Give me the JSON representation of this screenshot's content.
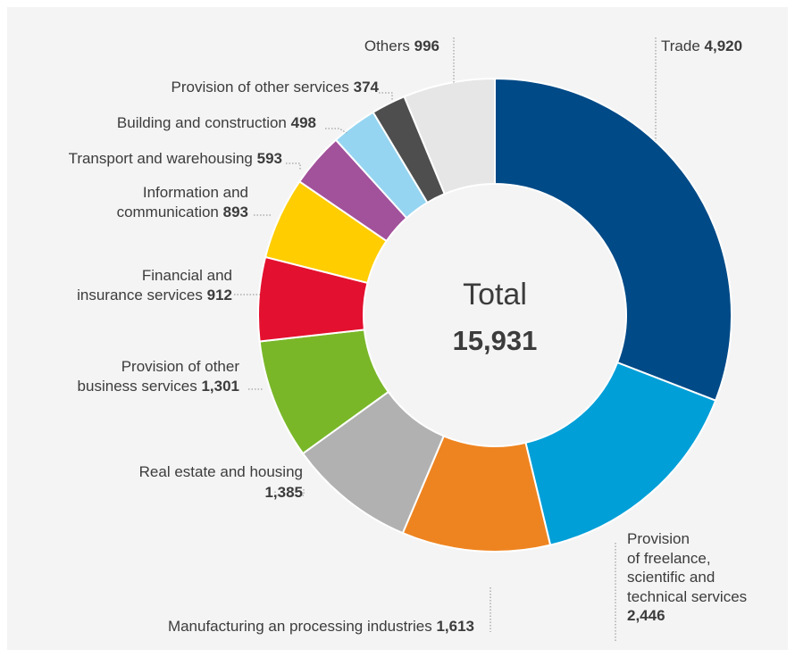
{
  "chart_data": {
    "type": "pie",
    "variant": "donut",
    "center_label": "Total",
    "total": "15,931",
    "slices": [
      {
        "label": "Trade",
        "value": 4920,
        "value_text": "4,920",
        "color": "#004a87"
      },
      {
        "label": "Provision of freelance, scientific and technical services",
        "value": 2446,
        "value_text": "2,446",
        "color": "#009fd8"
      },
      {
        "label": "Manufacturing an processing industries",
        "value": 1613,
        "value_text": "1,613",
        "color": "#ee8420"
      },
      {
        "label": "Real estate and housing",
        "value": 1385,
        "value_text": "1,385",
        "color": "#b1b1b1"
      },
      {
        "label": "Provision of other business services",
        "value": 1301,
        "value_text": "1,301",
        "color": "#79b729"
      },
      {
        "label": "Financial and insurance services",
        "value": 912,
        "value_text": "912",
        "color": "#e3102f"
      },
      {
        "label": "Information and communication",
        "value": 893,
        "value_text": "893",
        "color": "#ffcd00"
      },
      {
        "label": "Transport and warehousing",
        "value": 593,
        "value_text": "593",
        "color": "#a2519b"
      },
      {
        "label": "Building and construction",
        "value": 498,
        "value_text": "498",
        "color": "#95d5f1"
      },
      {
        "label": "Provision of other services",
        "value": 374,
        "value_text": "374",
        "color": "#4e4e4e"
      },
      {
        "label": "Others",
        "value": 996,
        "value_text": "996",
        "color": "#e6e6e6"
      }
    ]
  },
  "labels": {
    "trade": "Trade",
    "freelance": [
      "Provision",
      "of freelance,",
      "scientific and",
      "technical services"
    ],
    "manufacturing": "Manufacturing an processing industries",
    "real_estate": "Real estate and housing",
    "other_business": [
      "Provision of other",
      "business services"
    ],
    "financial": [
      "Financial and",
      "insurance services"
    ],
    "info_comm": [
      "Information and",
      "communication"
    ],
    "transport": "Transport and warehousing",
    "building": "Building and construction",
    "other_services": "Provision of other services",
    "others": "Others"
  }
}
